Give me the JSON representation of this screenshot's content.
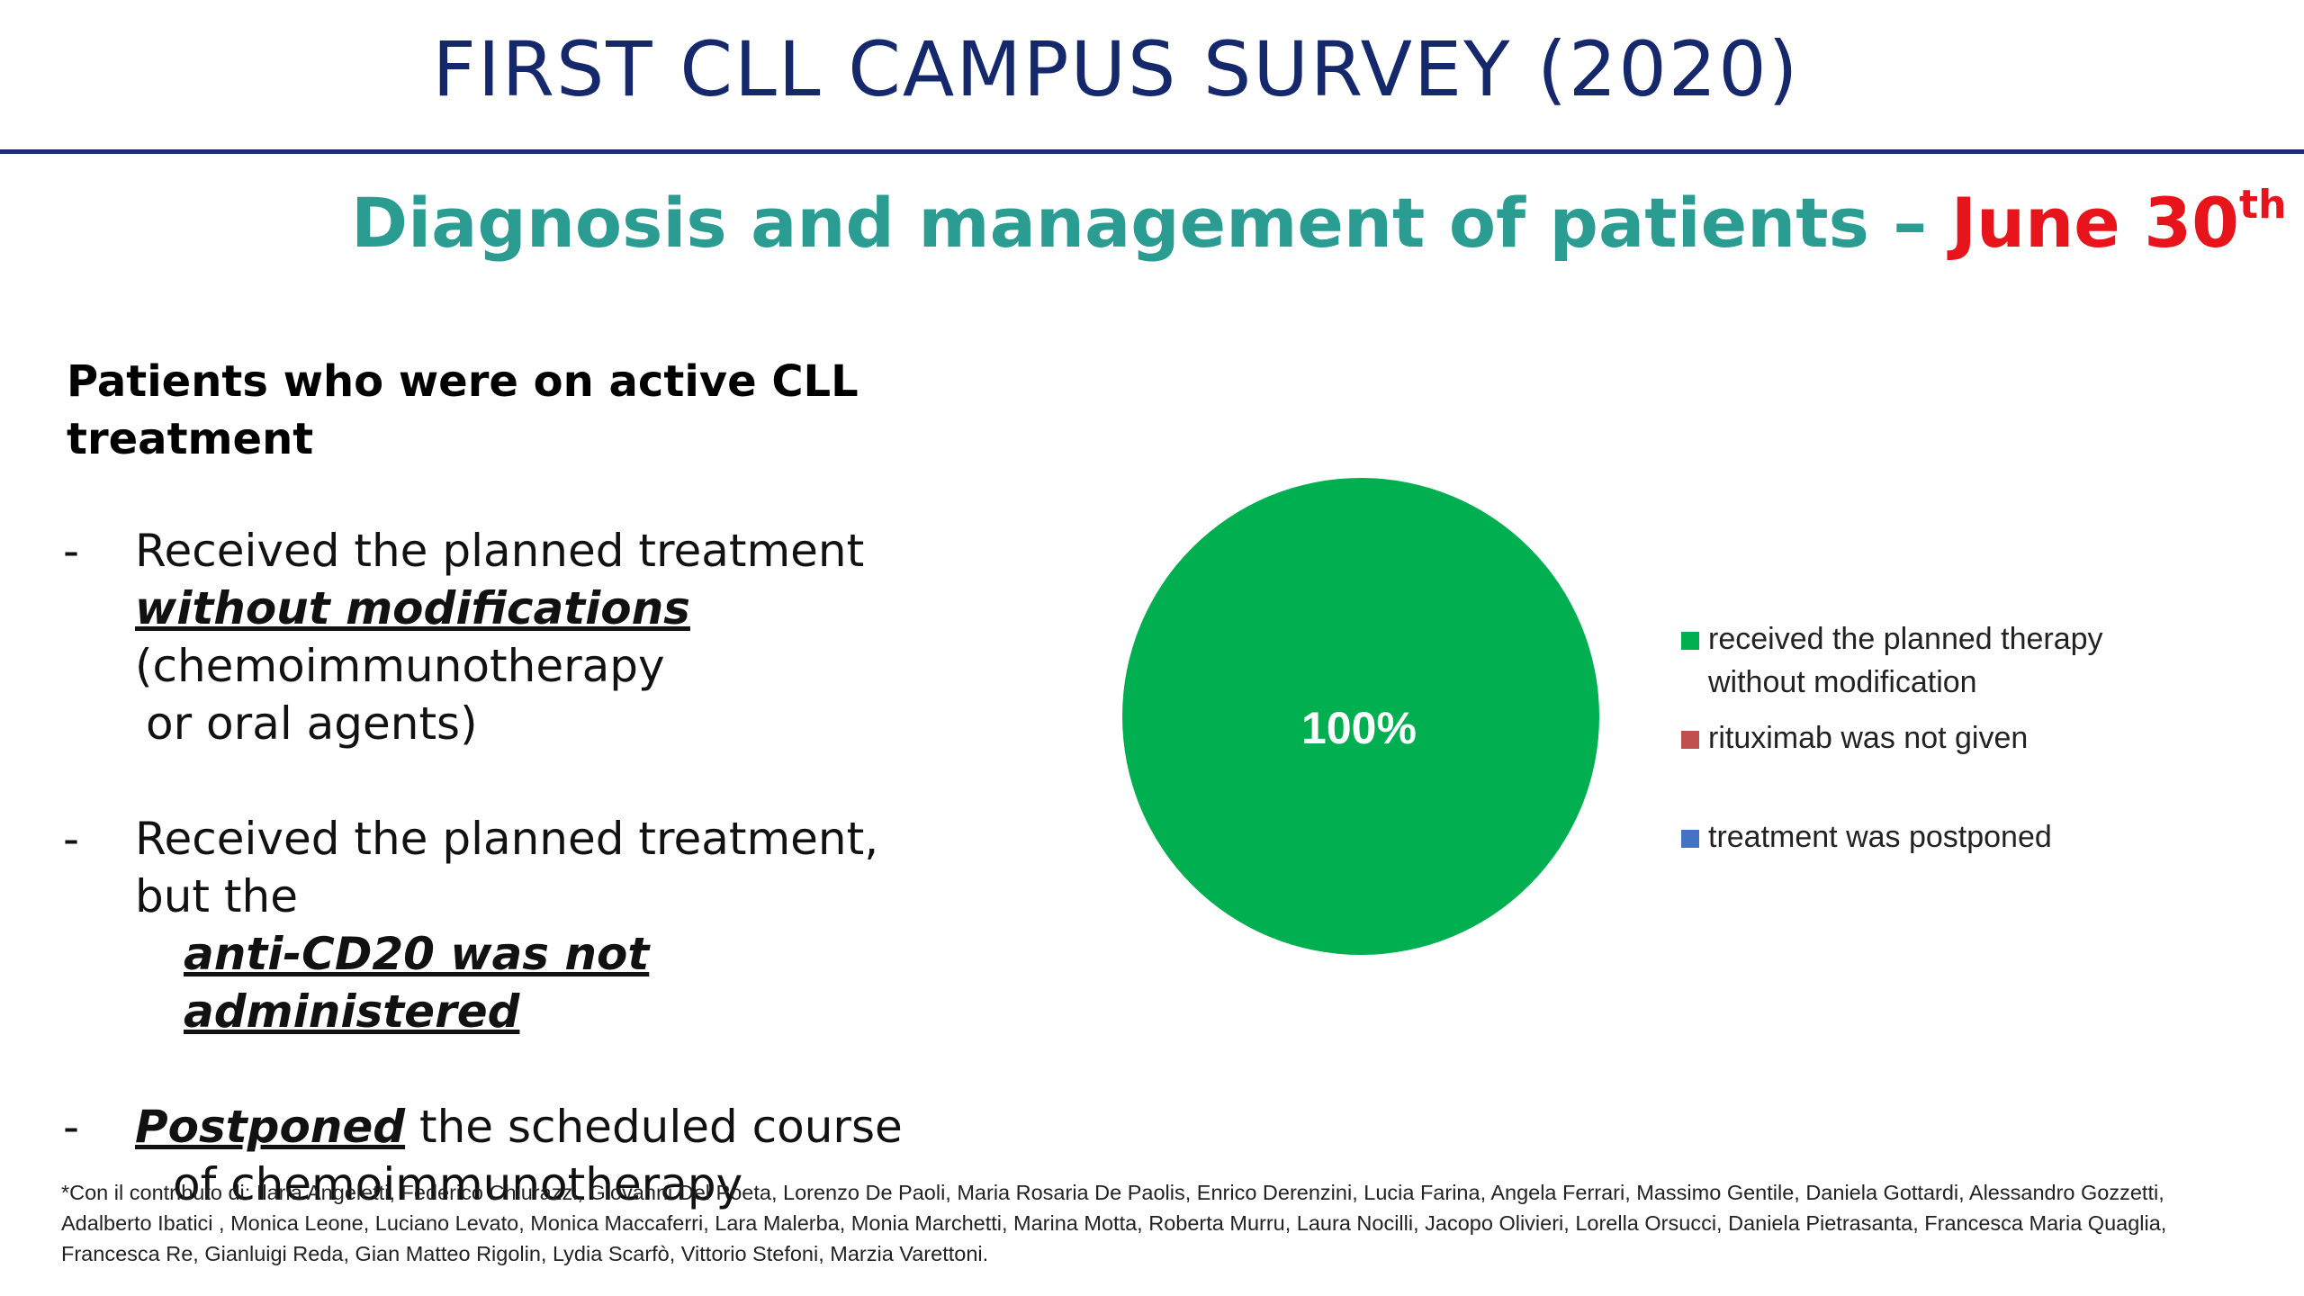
{
  "header": {
    "title": "FIRST CLL CAMPUS SURVEY (2020)",
    "subtitle_main": "Diagnosis and management of patients –",
    "subtitle_date": "June 30",
    "subtitle_date_suffix": "th"
  },
  "content": {
    "section_head": "Patients who were on active CLL treatment",
    "bullet_1": {
      "dash": "-",
      "line1": "Received the planned treatment",
      "emphasis": "without modifications",
      "line3": "(chemoimmunotherapy",
      "line4": "or oral agents)"
    },
    "bullet_2": {
      "dash": "-",
      "line1": "Received the planned treatment,",
      "line2": "but the",
      "emphasis": "anti-CD20 was not administered"
    },
    "bullet_3": {
      "dash": "-",
      "emphasis": "Postponed",
      "rest": " the scheduled course",
      "line2": "of chemoimmunotherapy"
    }
  },
  "chart_data": {
    "type": "pie",
    "categories": [
      "received the planned therapy without modification",
      "rituximab was not given",
      "treatment was postponed"
    ],
    "values": [
      100,
      0,
      0
    ],
    "data_labels": [
      "100%"
    ],
    "legend_position": "right",
    "colors": [
      "#00b050",
      "#c0504d",
      "#4472c4"
    ]
  },
  "legend": {
    "items": [
      {
        "line1": "received the planned therapy",
        "line2": "without modification",
        "color": "#00b050"
      },
      {
        "line1": "rituximab was not given",
        "color": "#c0504d"
      },
      {
        "line1": "treatment was postponed",
        "color": "#4472c4"
      }
    ]
  },
  "footnote": {
    "text": "*Con il contributo di: Ilaria Angeletti, Federico Chiurazzi, Giovanni Del Poeta, Lorenzo De Paoli, Maria Rosaria De Paolis, Enrico Derenzini, Lucia Farina, Angela Ferrari, Massimo Gentile, Daniela Gottardi, Alessandro Gozzetti, Adalberto Ibatici , Monica Leone, Luciano Levato, Monica Maccaferri, Lara Malerba, Monia Marchetti, Marina Motta, Roberta Murru, Laura Nocilli, Jacopo Olivieri, Lorella Orsucci, Daniela Pietrasanta, Francesca Maria Quaglia, Francesca Re, Gianluigi Reda, Gian Matteo Rigolin, Lydia Scarfò, Vittorio Stefoni, Marzia Varettoni."
  }
}
